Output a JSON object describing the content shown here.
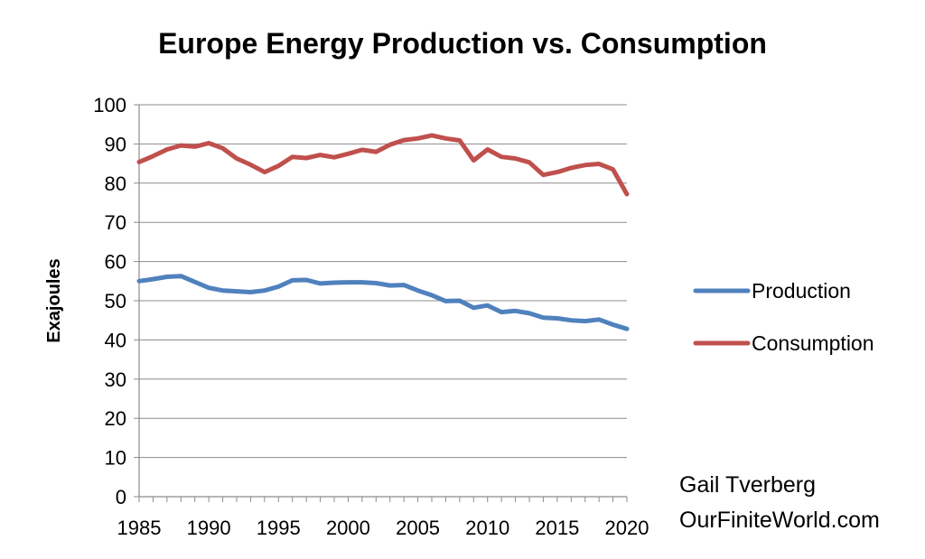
{
  "chart_data": {
    "type": "line",
    "title": "Europe Energy Production vs. Consumption",
    "ylabel": "Exajoules",
    "xlabel": "",
    "ylim": [
      0,
      100
    ],
    "yticks": [
      0,
      10,
      20,
      30,
      40,
      50,
      60,
      70,
      80,
      90,
      100
    ],
    "xlim": [
      1985,
      2020
    ],
    "xticks": [
      1985,
      1990,
      1995,
      2000,
      2005,
      2010,
      2015,
      2020
    ],
    "grid": "horizontal",
    "legend_position": "right",
    "x": [
      1985,
      1986,
      1987,
      1988,
      1989,
      1990,
      1991,
      1992,
      1993,
      1994,
      1995,
      1996,
      1997,
      1998,
      1999,
      2000,
      2001,
      2002,
      2003,
      2004,
      2005,
      2006,
      2007,
      2008,
      2009,
      2010,
      2011,
      2012,
      2013,
      2014,
      2015,
      2016,
      2017,
      2018,
      2019,
      2020
    ],
    "series": [
      {
        "name": "Production",
        "color": "#4F81BD",
        "values": [
          55.0,
          55.5,
          56.1,
          56.3,
          54.8,
          53.3,
          52.6,
          52.4,
          52.2,
          52.6,
          53.6,
          55.2,
          55.3,
          54.4,
          54.6,
          54.7,
          54.7,
          54.5,
          53.9,
          54.0,
          52.6,
          51.4,
          49.9,
          50.0,
          48.2,
          48.8,
          47.1,
          47.4,
          46.8,
          45.7,
          45.5,
          45.0,
          44.8,
          45.2,
          43.9,
          42.8
        ]
      },
      {
        "name": "Consumption",
        "color": "#C0504D",
        "values": [
          85.4,
          86.9,
          88.6,
          89.6,
          89.3,
          90.2,
          88.9,
          86.3,
          84.7,
          82.8,
          84.4,
          86.7,
          86.4,
          87.2,
          86.6,
          87.5,
          88.5,
          88.0,
          89.8,
          91.0,
          91.4,
          92.2,
          91.4,
          90.9,
          85.8,
          88.6,
          86.7,
          86.3,
          85.3,
          82.1,
          82.8,
          83.9,
          84.6,
          84.9,
          83.5,
          77.2
        ]
      }
    ]
  },
  "credit": {
    "line1": "Gail Tverberg",
    "line2": "OurFiniteWorld.com"
  }
}
